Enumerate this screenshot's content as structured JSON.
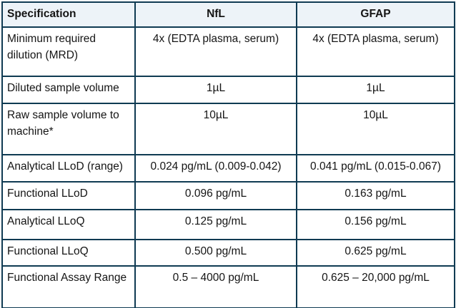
{
  "table": {
    "columns": [
      "Specification",
      "NfL",
      "GFAP"
    ],
    "rows": [
      {
        "spec": "Minimum required dilution (MRD)",
        "nfl": "4x (EDTA plasma, serum)",
        "gfap": "4x (EDTA plasma, serum)"
      },
      {
        "spec": "Diluted sample volume",
        "nfl": "1µL",
        "gfap": "1µL"
      },
      {
        "spec": "Raw sample volume to machine*",
        "nfl": "10µL",
        "gfap": "10µL"
      },
      {
        "spec": "Analytical LLoD (range)",
        "nfl": "0.024 pg/mL (0.009-0.042)",
        "gfap": "0.041 pg/mL (0.015-0.067)"
      },
      {
        "spec": "Functional LLoD",
        "nfl": "0.096 pg/mL",
        "gfap": "0.163 pg/mL"
      },
      {
        "spec": "Analytical LLoQ",
        "nfl": "0.125 pg/mL",
        "gfap": "0.156 pg/mL"
      },
      {
        "spec": "Functional LLoQ",
        "nfl": "0.500 pg/mL",
        "gfap": "0.625 pg/mL"
      },
      {
        "spec": "Functional Assay Range",
        "nfl": "0.5 – 4000 pg/mL",
        "gfap": "0.625 – 20,000 pg/mL"
      }
    ],
    "colors": {
      "border": "#0f3a52",
      "header_bg": "#edf3f8",
      "text": "#151515",
      "page_bg": "#ffffff"
    }
  }
}
